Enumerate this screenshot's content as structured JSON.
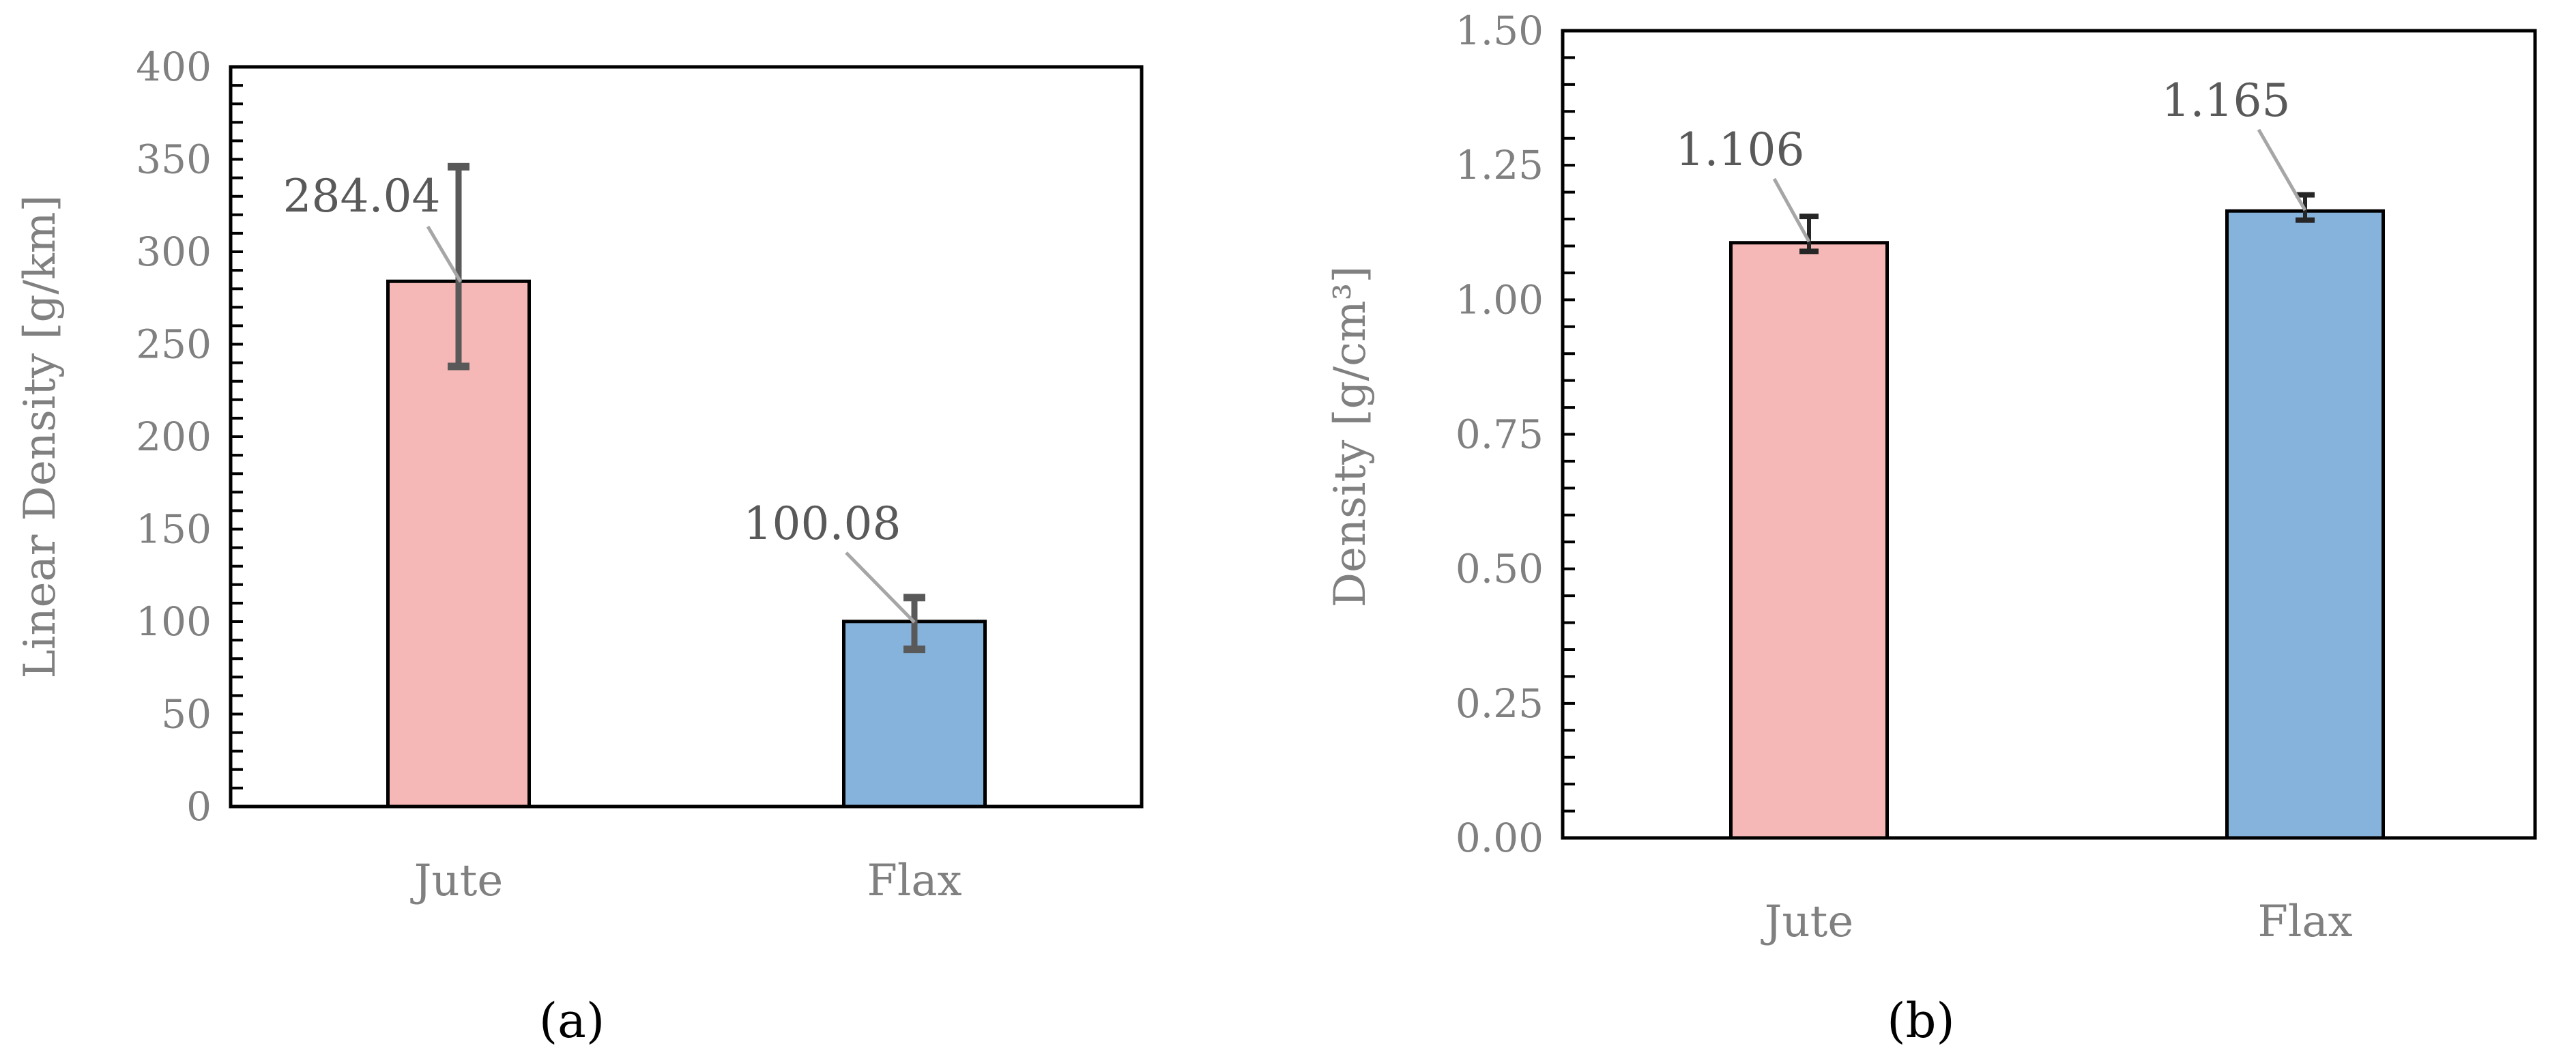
{
  "colors": {
    "jute": "#f5b8b6",
    "flax": "#86b3db",
    "axis": "#000000",
    "text": "#808080",
    "label_text": "#595959",
    "leader": "#a6a6a6"
  },
  "chart_data": [
    {
      "type": "bar",
      "panel": "a",
      "panel_label": "(a)",
      "categories": [
        "Jute",
        "Flax"
      ],
      "values": [
        284.04,
        100.08
      ],
      "errors": [
        {
          "low": 238,
          "high": 346
        },
        {
          "low": 85,
          "high": 113
        }
      ],
      "data_labels": [
        "284.04",
        "100.08"
      ],
      "title": "",
      "xlabel": "",
      "ylabel": "Linear Density [g/km]",
      "ylim": [
        0,
        400
      ],
      "yticks": [
        "0",
        "50",
        "100",
        "150",
        "200",
        "250",
        "300",
        "350",
        "400"
      ],
      "grid": false,
      "legend": "none"
    },
    {
      "type": "bar",
      "panel": "b",
      "panel_label": "(b)",
      "categories": [
        "Jute",
        "Flax"
      ],
      "values": [
        1.106,
        1.165
      ],
      "errors": [
        {
          "low": 1.09,
          "high": 1.155
        },
        {
          "low": 1.148,
          "high": 1.195
        }
      ],
      "data_labels": [
        "1.106",
        "1.165"
      ],
      "title": "",
      "xlabel": "",
      "ylabel": "Density [g/cm³]",
      "ylim": [
        0,
        1.5
      ],
      "yticks": [
        "0.00",
        "0.25",
        "0.50",
        "0.75",
        "1.00",
        "1.25",
        "1.50"
      ],
      "grid": false,
      "legend": "none"
    }
  ]
}
